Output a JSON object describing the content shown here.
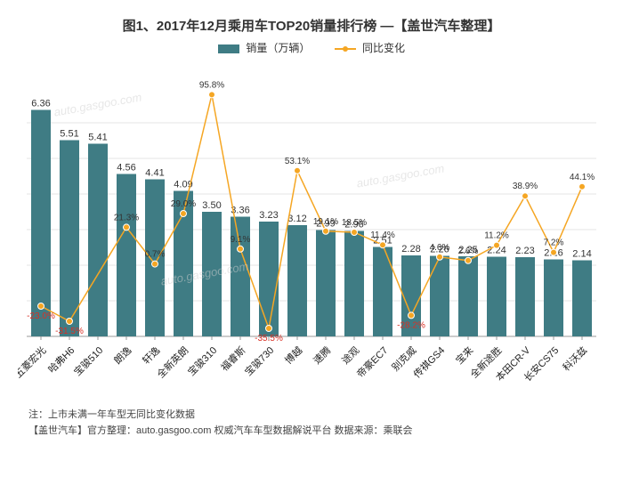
{
  "title": "图1、2017年12月乘用车TOP20销量排行榜 —【盖世汽车整理】",
  "legend": {
    "bar_label": "销量（万辆）",
    "line_label": "同比变化"
  },
  "chart": {
    "type": "bar+line",
    "bar_color": "#3f7c84",
    "line_color": "#f5a623",
    "neg_label_color": "#d93025",
    "pos_label_color": "#333333",
    "grid_color": "#e5e5e5",
    "axis_color": "#999999",
    "background_color": "#ffffff",
    "y_max": 7.0,
    "categories": [
      "五菱宏光",
      "哈弗H6",
      "宝骏510",
      "朗逸",
      "轩逸",
      "全新英朗",
      "宝骏310",
      "福睿斯",
      "宝骏730",
      "博越",
      "速腾",
      "途观",
      "帝豪EC7",
      "别克威",
      "传祺GS4",
      "宝来",
      "全新途胜",
      "本田CR-V",
      "长安CS75",
      "科沃兹"
    ],
    "values": [
      6.36,
      5.51,
      5.41,
      4.56,
      4.41,
      4.09,
      3.5,
      3.36,
      3.23,
      3.12,
      2.99,
      2.96,
      2.51,
      2.28,
      2.26,
      2.25,
      2.24,
      2.23,
      2.16,
      2.14
    ],
    "pct": [
      -23.0,
      -31.5,
      null,
      21.3,
      0.7,
      29.0,
      null,
      9.1,
      -35.5,
      53.1,
      19.1,
      18.5,
      11.4,
      -28.2,
      4.6,
      2.6,
      11.2,
      38.9,
      7.2,
      44.1
    ],
    "pct_display": [
      "-23.0%",
      "-31.5%",
      "",
      "21.3%",
      "0.7%",
      "29.0%",
      "95.8%",
      "9.1%",
      "-35.5%",
      "53.1%",
      "19.1%",
      "18.5%",
      "11.4%",
      "-28.2%",
      "4.6%",
      "2.6%",
      "11.2%",
      "38.9%",
      "7.2%",
      "44.1%"
    ],
    "pct_special_high": {
      "6": "95.8%"
    },
    "label_fontsize": 11,
    "pct_fontsize": 10,
    "bar_width_ratio": 0.68
  },
  "footnotes": {
    "line1": "注：上市未满一年车型无同比变化数据",
    "line2": "【盖世汽车】官方整理：auto.gasgoo.com 权威汽车车型数据解说平台 数据来源：乘联会"
  },
  "watermark": "auto.gasgoo.com"
}
